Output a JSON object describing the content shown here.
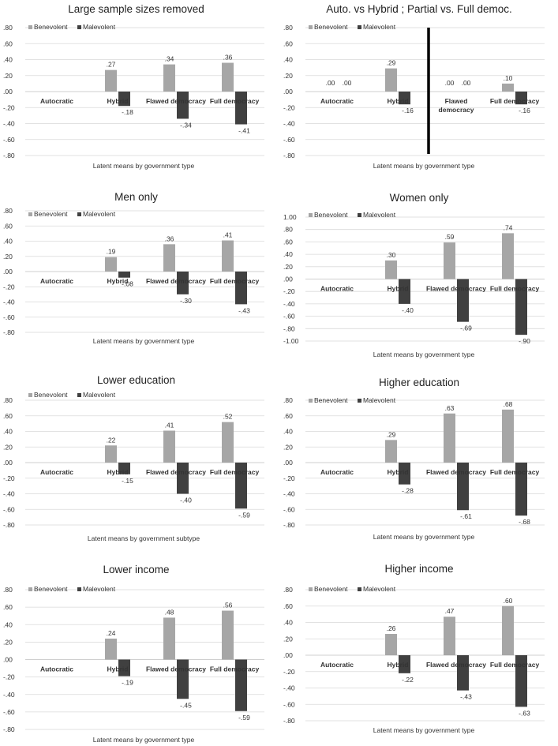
{
  "colors": {
    "benevolent": "#a6a6a6",
    "malevolent": "#404040",
    "divider": "#000000",
    "grid": "#d9d9d9"
  },
  "chart_data": [
    {
      "type": "bar",
      "title": "Large sample sizes removed",
      "categories": [
        "Autocratic",
        "Hybrid",
        "Flawed democracy",
        "Full democracy"
      ],
      "yticks": [
        ".80",
        ".60",
        ".40",
        ".20",
        ".00",
        "-.20",
        "-.40",
        "-.60",
        "-.80"
      ],
      "ylim": [
        -0.8,
        0.8
      ],
      "series": [
        {
          "name": "Benevolent",
          "values": [
            null,
            0.27,
            0.34,
            0.36
          ],
          "labels": [
            "",
            ".27",
            ".34",
            ".36"
          ]
        },
        {
          "name": "Malevolent",
          "values": [
            null,
            -0.18,
            -0.34,
            -0.41
          ],
          "labels": [
            "",
            "-.18",
            "-.34",
            "-.41"
          ]
        }
      ],
      "xlabel": "Latent means by government type"
    },
    {
      "type": "bar",
      "title": "Auto. vs Hybrid ; Partial vs. Full democ.",
      "categories": [
        "Autocratic",
        "Hybrid",
        "Flawed democracy",
        "Full democracy"
      ],
      "yticks": [
        ".80",
        ".60",
        ".40",
        ".20",
        ".00",
        "-.20",
        "-.40",
        "-.60",
        "-.80"
      ],
      "ylim": [
        -0.8,
        0.8
      ],
      "series": [
        {
          "name": "Benevolent",
          "values": [
            0.0,
            0.29,
            0.0,
            0.1
          ],
          "labels": [
            ".00",
            ".29",
            ".00",
            ".10"
          ]
        },
        {
          "name": "Malevolent",
          "values": [
            0.0,
            -0.16,
            0.0,
            -0.16
          ],
          "labels": [
            ".00",
            "-.16",
            ".00",
            "-.16"
          ]
        }
      ],
      "divider": true,
      "xlabel": "Latent means by government type"
    },
    {
      "type": "bar",
      "title": "Men only",
      "categories": [
        "Autocratic",
        "Hybrid",
        "Flawed democracy",
        "Full democracy"
      ],
      "yticks": [
        ".80",
        ".60",
        ".40",
        ".20",
        ".00",
        "-.20",
        "-.40",
        "-.60",
        "-.80"
      ],
      "ylim": [
        -0.8,
        0.8
      ],
      "series": [
        {
          "name": "Benevolent",
          "values": [
            null,
            0.19,
            0.36,
            0.41
          ],
          "labels": [
            "",
            ".19",
            ".36",
            ".41"
          ]
        },
        {
          "name": "Malevolent",
          "values": [
            null,
            -0.08,
            -0.3,
            -0.43
          ],
          "labels": [
            "",
            "-.08",
            "-.30",
            "-.43"
          ]
        }
      ],
      "xlabel": "Latent means by government type"
    },
    {
      "type": "bar",
      "title": "Women only",
      "categories": [
        "Autocratic",
        "Hybrid",
        "Flawed democracy",
        "Full democracy"
      ],
      "yticks": [
        "1.00",
        ".80",
        ".60",
        ".40",
        ".20",
        ".00",
        "-.20",
        "-.40",
        "-.60",
        "-.80",
        "-1.00"
      ],
      "ylim": [
        -1.0,
        1.0
      ],
      "series": [
        {
          "name": "Benevolent",
          "values": [
            null,
            0.3,
            0.59,
            0.74
          ],
          "labels": [
            "",
            ".30",
            ".59",
            ".74"
          ]
        },
        {
          "name": "Malevolent",
          "values": [
            null,
            -0.4,
            -0.69,
            -0.9
          ],
          "labels": [
            "",
            "-.40",
            "-.69",
            "-.90"
          ]
        }
      ],
      "xlabel": "Latent means by government type"
    },
    {
      "type": "bar",
      "title": "Lower education",
      "categories": [
        "Autocratic",
        "Hybrid",
        "Flawed democracy",
        "Full democracy"
      ],
      "yticks": [
        ".80",
        ".60",
        ".40",
        ".20",
        ".00",
        "-.20",
        "-.40",
        "-.60",
        "-.80"
      ],
      "ylim": [
        -0.8,
        0.8
      ],
      "series": [
        {
          "name": "Benevolent",
          "values": [
            null,
            0.22,
            0.41,
            0.52
          ],
          "labels": [
            "",
            ".22",
            ".41",
            ".52"
          ]
        },
        {
          "name": "Malevolent",
          "values": [
            null,
            -0.15,
            -0.4,
            -0.59
          ],
          "labels": [
            "",
            "-.15",
            "-.40",
            "-.59"
          ]
        }
      ],
      "xlabel": "Latent means by government subtype"
    },
    {
      "type": "bar",
      "title": "Higher education",
      "categories": [
        "Autocratic",
        "Hybrid",
        "Flawed democracy",
        "Full democracy"
      ],
      "yticks": [
        ".80",
        ".60",
        ".40",
        ".20",
        ".00",
        "-.20",
        "-.40",
        "-.60",
        "-.80"
      ],
      "ylim": [
        -0.8,
        0.8
      ],
      "series": [
        {
          "name": "Benevolent",
          "values": [
            null,
            0.29,
            0.63,
            0.68
          ],
          "labels": [
            "",
            ".29",
            ".63",
            ".68"
          ]
        },
        {
          "name": "Malevolent",
          "values": [
            null,
            -0.28,
            -0.61,
            -0.68
          ],
          "labels": [
            "",
            "-.28",
            "-.61",
            "-.68"
          ]
        }
      ],
      "xlabel": "Latent means by government type"
    },
    {
      "type": "bar",
      "title": "Lower income",
      "categories": [
        "Autocratic",
        "Hybrid",
        "Flawed democracy",
        "Full democracy"
      ],
      "yticks": [
        ".80",
        ".60",
        ".40",
        ".20",
        ".00",
        "-.20",
        "-.40",
        "-.60",
        "-.80"
      ],
      "ylim": [
        -0.8,
        0.8
      ],
      "series": [
        {
          "name": "Benevolent",
          "values": [
            null,
            0.24,
            0.48,
            0.56
          ],
          "labels": [
            "",
            ".24",
            ".48",
            ".56"
          ]
        },
        {
          "name": "Malevolent",
          "values": [
            null,
            -0.19,
            -0.45,
            -0.59
          ],
          "labels": [
            "",
            "-.19",
            "-.45",
            "-.59"
          ]
        }
      ],
      "xlabel": "Latent means by government type"
    },
    {
      "type": "bar",
      "title": "Higher income",
      "categories": [
        "Autocratic",
        "Hybrid",
        "Flawed democracy",
        "Full democracy"
      ],
      "yticks": [
        ".80",
        ".60",
        ".40",
        ".20",
        ".00",
        "-.20",
        "-.40",
        "-.60",
        "-.80"
      ],
      "ylim": [
        -0.8,
        0.8
      ],
      "series": [
        {
          "name": "Benevolent",
          "values": [
            null,
            0.26,
            0.47,
            0.6
          ],
          "labels": [
            "",
            ".26",
            ".47",
            ".60"
          ]
        },
        {
          "name": "Malevolent",
          "values": [
            null,
            -0.22,
            -0.43,
            -0.63
          ],
          "labels": [
            "",
            "-.22",
            "-.43",
            "-.63"
          ]
        }
      ],
      "xlabel": "Latent means by government type"
    }
  ]
}
